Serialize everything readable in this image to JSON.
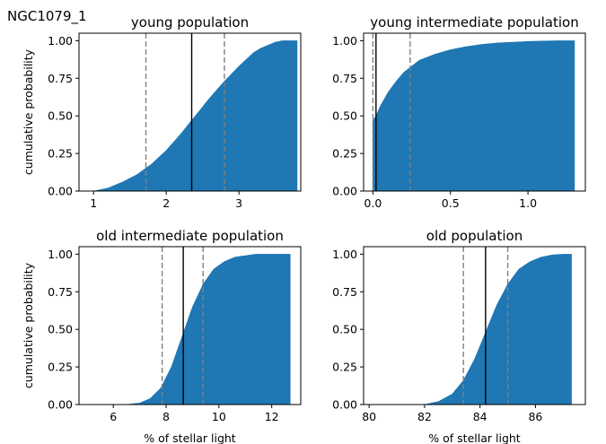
{
  "figure": {
    "suptitle": "NGC1079_1",
    "colors": {
      "fill": "#1f77b4",
      "median": "#000000",
      "bounds": "#808080"
    }
  },
  "chart_data": [
    {
      "type": "area",
      "title": "young population",
      "xlabel": "",
      "ylabel": "cumulative probability",
      "xlim": [
        0.8,
        3.85
      ],
      "ylim": [
        0,
        1.05
      ],
      "xticks": [
        1,
        2,
        3
      ],
      "xtick_labels": [
        "1",
        "2",
        "3"
      ],
      "yticks": [
        0,
        0.25,
        0.5,
        0.75,
        1
      ],
      "ytick_labels": [
        "0.00",
        "0.25",
        "0.50",
        "0.75",
        "1.00"
      ],
      "x": [
        1.0,
        1.1,
        1.2,
        1.4,
        1.6,
        1.8,
        2.0,
        2.2,
        2.4,
        2.6,
        2.8,
        3.0,
        3.2,
        3.3,
        3.4,
        3.5,
        3.6,
        3.8
      ],
      "y": [
        0.0,
        0.01,
        0.02,
        0.06,
        0.11,
        0.18,
        0.27,
        0.38,
        0.5,
        0.62,
        0.73,
        0.83,
        0.92,
        0.95,
        0.97,
        0.99,
        1.0,
        1.0
      ],
      "median": 2.35,
      "lower": 1.72,
      "upper": 2.8,
      "grid": false
    },
    {
      "type": "area",
      "title": "young intermediate population",
      "xlabel": "",
      "ylabel": "",
      "xlim": [
        -0.06,
        1.37
      ],
      "ylim": [
        0,
        1.05
      ],
      "xticks": [
        0,
        0.5,
        1
      ],
      "xtick_labels": [
        "0.0",
        "0.5",
        "1.0"
      ],
      "yticks": [
        0,
        0.25,
        0.5,
        0.75,
        1
      ],
      "ytick_labels": [
        "0.00",
        "0.25",
        "0.50",
        "0.75",
        "1.00"
      ],
      "x": [
        0.0,
        0.02,
        0.05,
        0.1,
        0.15,
        0.2,
        0.25,
        0.3,
        0.4,
        0.5,
        0.6,
        0.7,
        0.8,
        0.9,
        1.0,
        1.1,
        1.2,
        1.3
      ],
      "y": [
        0.47,
        0.5,
        0.57,
        0.66,
        0.73,
        0.79,
        0.83,
        0.87,
        0.91,
        0.94,
        0.96,
        0.975,
        0.985,
        0.99,
        0.995,
        0.998,
        1.0,
        1.0
      ],
      "median": 0.02,
      "lower": 0.0,
      "upper": 0.24,
      "grid": false
    },
    {
      "type": "area",
      "title": "old intermediate population",
      "xlabel": "% of stellar light",
      "ylabel": "cumulative probability",
      "xlim": [
        4.7,
        13.1
      ],
      "ylim": [
        0,
        1.05
      ],
      "xticks": [
        6,
        8,
        10,
        12
      ],
      "xtick_labels": [
        "6",
        "8",
        "10",
        "12"
      ],
      "yticks": [
        0,
        0.25,
        0.5,
        0.75,
        1
      ],
      "ytick_labels": [
        "0.00",
        "0.25",
        "0.50",
        "0.75",
        "1.00"
      ],
      "x": [
        6.5,
        7.0,
        7.4,
        7.8,
        8.2,
        8.6,
        9.0,
        9.4,
        9.8,
        10.2,
        10.6,
        11.0,
        11.4,
        12.0,
        12.7
      ],
      "y": [
        0.0,
        0.01,
        0.04,
        0.11,
        0.25,
        0.45,
        0.65,
        0.8,
        0.9,
        0.95,
        0.98,
        0.99,
        1.0,
        1.0,
        1.0
      ],
      "median": 8.65,
      "lower": 7.85,
      "upper": 9.4,
      "grid": false
    },
    {
      "type": "area",
      "title": "old population",
      "xlabel": "% of stellar light",
      "ylabel": "",
      "xlim": [
        79.8,
        87.8
      ],
      "ylim": [
        0,
        1.05
      ],
      "xticks": [
        80,
        82,
        84,
        86
      ],
      "xtick_labels": [
        "80",
        "82",
        "84",
        "86"
      ],
      "yticks": [
        0,
        0.25,
        0.5,
        0.75,
        1
      ],
      "ytick_labels": [
        "0.00",
        "0.25",
        "0.50",
        "0.75",
        "1.00"
      ],
      "x": [
        82.0,
        82.5,
        83.0,
        83.4,
        83.8,
        84.2,
        84.6,
        85.0,
        85.4,
        85.8,
        86.2,
        86.6,
        87.0,
        87.3
      ],
      "y": [
        0.0,
        0.02,
        0.07,
        0.16,
        0.3,
        0.48,
        0.66,
        0.8,
        0.9,
        0.95,
        0.98,
        0.995,
        1.0,
        1.0
      ],
      "median": 84.2,
      "lower": 83.4,
      "upper": 85.0,
      "grid": false
    }
  ]
}
